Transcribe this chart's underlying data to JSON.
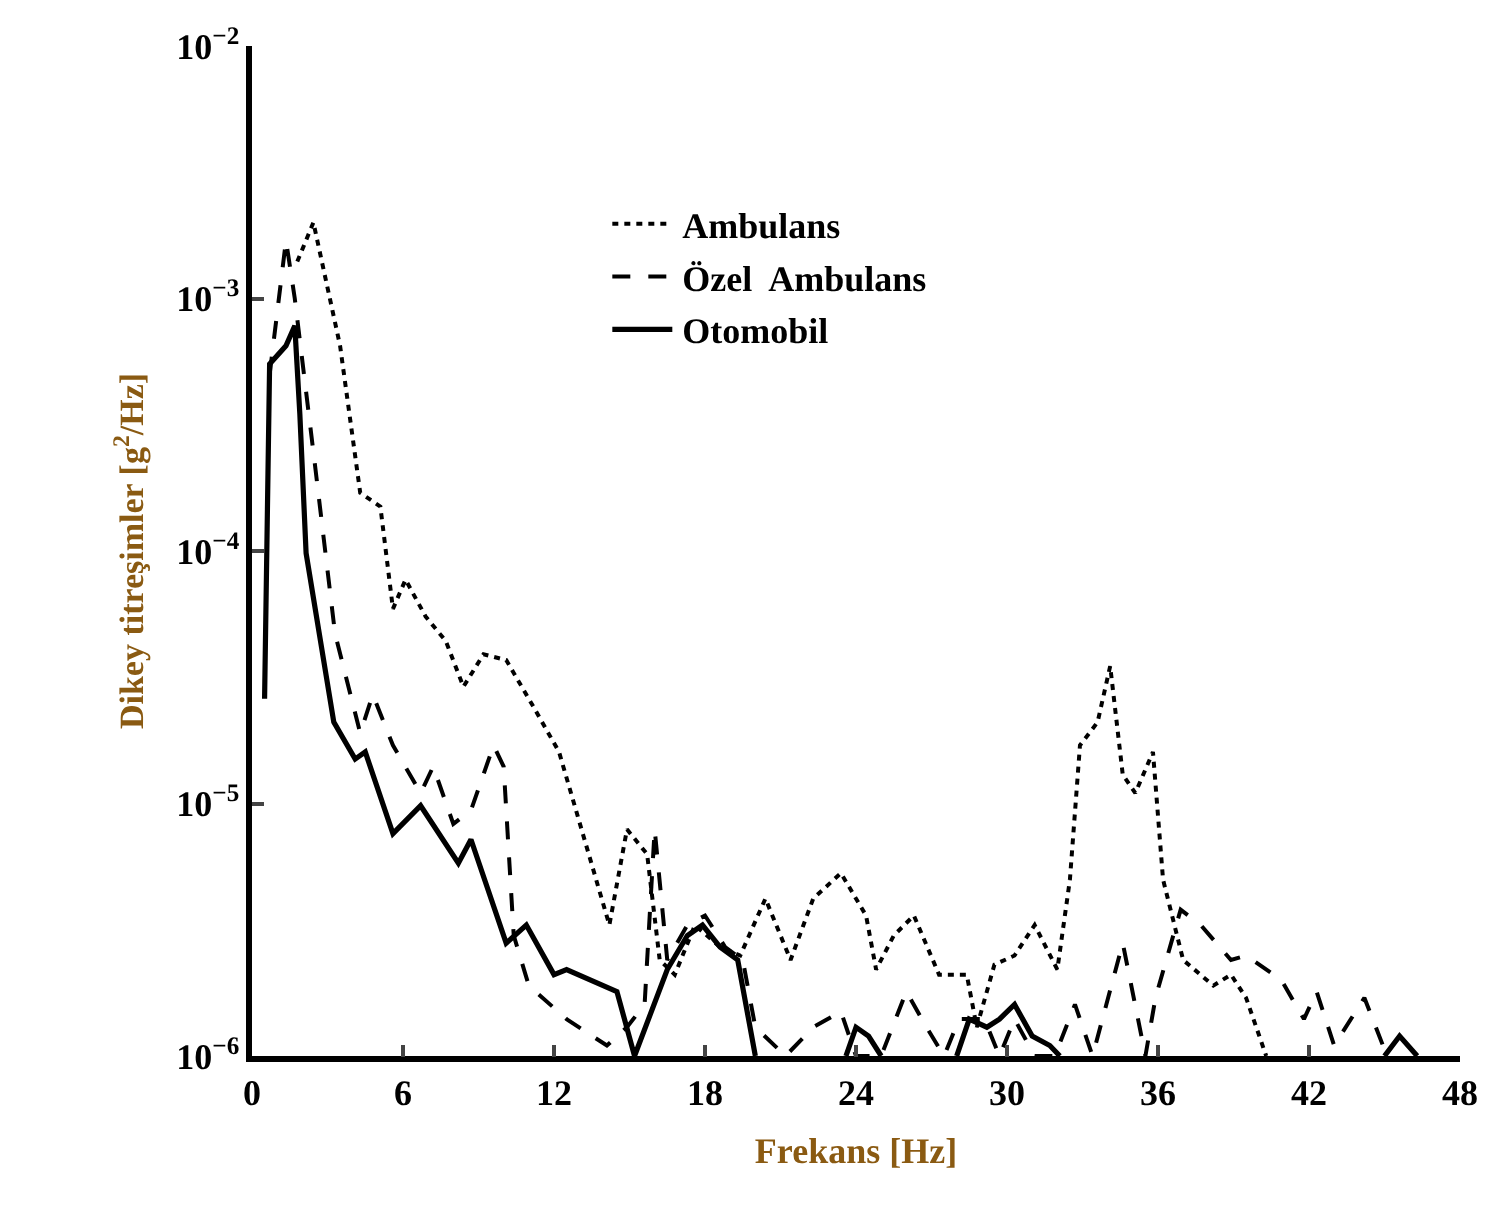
{
  "chart_data": {
    "type": "line",
    "xlabel": "Frekans [Hz]",
    "ylabel": "Dikey titreşimler [g$^{2}$/Hz]",
    "log": "y",
    "xlim": [
      0,
      48
    ],
    "xticks": [
      0,
      6,
      12,
      18,
      24,
      30,
      36,
      42,
      48
    ],
    "ylim": [
      1e-06,
      0.01
    ],
    "yticks": [
      {
        "value": 0.01,
        "label": "10$^{−2}$"
      },
      {
        "value": 0.001,
        "label": "10$^{−3}$"
      },
      {
        "value": 0.0001,
        "label": "10$^{−4}$"
      },
      {
        "value": 1e-05,
        "label": "10$^{−5}$"
      },
      {
        "value": 1e-06,
        "label": "10$^{−6}$"
      }
    ],
    "grid": false,
    "legend": "top",
    "marker": "none",
    "series": [
      {
        "name": "Ambulans",
        "color": "#000000",
        "line_style": "dotted",
        "x": [
          1.8,
          2.44,
          3.5,
          4.3,
          5.1,
          5.6,
          6.1,
          6.9,
          7.7,
          8.4,
          9.2,
          10.1,
          11.2,
          12.2,
          14.2,
          14.9,
          15.7,
          16.2,
          16.8,
          17.6,
          18.6,
          19.4,
          20.4,
          21.4,
          22.3,
          23.4,
          24.4,
          24.8,
          25.5,
          26.3,
          27.3,
          28.4,
          28.8,
          29.5,
          30.3,
          31.1,
          32.0,
          32.5,
          32.9,
          33.6,
          34.1,
          34.6,
          35.1,
          35.8,
          36.2,
          37.0,
          38.2,
          38.9,
          39.5,
          40.3
        ],
        "values": [
          0.0014,
          0.002,
          0.00065,
          0.00017,
          0.00015,
          5.9e-05,
          7.7e-05,
          5.5e-05,
          4.4e-05,
          2.9e-05,
          3.9e-05,
          3.7e-05,
          2.4e-05,
          1.6e-05,
          3.3e-06,
          7.9e-06,
          6.3e-06,
          2.4e-06,
          2.1e-06,
          3.3e-06,
          2.7e-06,
          2.5e-06,
          4.2e-06,
          2.4e-06,
          4.2e-06,
          5.3e-06,
          3.6e-06,
          2.2e-06,
          3e-06,
          3.6e-06,
          2.1e-06,
          2.1e-06,
          1.3e-06,
          2.3e-06,
          2.5e-06,
          3.3e-06,
          2.2e-06,
          5e-06,
          1.7e-05,
          2.1e-05,
          3.5e-05,
          1.3e-05,
          1.1e-05,
          1.6e-05,
          5e-06,
          2.4e-06,
          1.9e-06,
          2.1e-06,
          1.7e-06,
          1e-06
        ]
      },
      {
        "name": "Özel  Ambulans",
        "color": "#000000",
        "line_style": "dashed",
        "x": [
          0.7,
          1.35,
          1.7,
          2.5,
          3.3,
          4.3,
          4.8,
          5.6,
          6.7,
          7.2,
          8.0,
          8.7,
          9.6,
          10.0,
          10.4,
          11.0,
          12.5,
          14.1,
          14.9,
          15.6,
          16.0,
          16.5,
          17.3,
          18.0,
          18.8,
          19.5,
          20.0,
          21.2,
          22.3,
          23.4,
          24.0,
          25.0,
          26.0,
          26.8,
          27.5,
          28.1,
          29.1,
          29.7,
          30.3,
          31.1,
          31.9,
          32.7,
          33.4,
          34.6,
          35.5,
          35.9,
          36.9,
          37.7,
          38.9,
          39.5,
          40.9,
          41.8,
          42.3,
          43.0,
          44.2,
          45.1
        ],
        "values": [
          0.0005,
          0.0017,
          0.001,
          0.00022,
          4.7e-05,
          1.9e-05,
          2.7e-05,
          1.7e-05,
          1.1e-05,
          1.4e-05,
          8.3e-06,
          9.4e-06,
          1.7e-05,
          1.4e-05,
          3e-06,
          1.9e-06,
          1.4e-06,
          1.1e-06,
          1.3e-06,
          1.6e-06,
          7.9e-06,
          2.4e-06,
          3.3e-06,
          3.6e-06,
          2.7e-06,
          2.4e-06,
          1.3e-06,
          1e-06,
          1.3e-06,
          1.5e-06,
          1e-06,
          1e-06,
          1.8e-06,
          1.3e-06,
          1e-06,
          1.4e-06,
          1.4e-06,
          1e-06,
          1.4e-06,
          1e-06,
          1e-06,
          1.6e-06,
          1e-06,
          2.8e-06,
          1e-06,
          1.7e-06,
          3.8e-06,
          3.3e-06,
          2.4e-06,
          2.5e-06,
          2e-06,
          1.4e-06,
          1.8e-06,
          1.1e-06,
          1.7e-06,
          1e-06
        ]
      },
      {
        "name": "Otomobil",
        "color": "#000000",
        "line_style": "solid",
        "x": [
          0.5,
          0.7,
          1.35,
          1.7,
          1.9,
          2.15,
          3.25,
          4.1,
          4.5,
          5.6,
          6.7,
          8.2,
          8.7,
          10.1,
          10.9,
          12.0,
          12.5,
          14.5,
          15.2,
          16.5,
          17.3,
          17.9,
          18.6,
          19.3,
          20.0,
          22,
          23.6,
          24.0,
          24.5,
          25.0,
          27,
          28.0,
          28.5,
          29.2,
          29.7,
          30.3,
          31.0,
          31.7,
          32.1,
          40,
          45.0,
          45.6,
          46.3
        ],
        "values": [
          2.6e-05,
          0.00055,
          0.00065,
          0.00078,
          0.00035,
          9.8e-05,
          2.1e-05,
          1.5e-05,
          1.6e-05,
          7.6e-06,
          9.8e-06,
          5.8e-06,
          7.2e-06,
          2.8e-06,
          3.3e-06,
          2.1e-06,
          2.2e-06,
          1.8e-06,
          1e-06,
          2.2e-06,
          3e-06,
          3.3e-06,
          2.7e-06,
          2.4e-06,
          1e-06,
          null,
          1e-06,
          1.3e-06,
          1.2e-06,
          1e-06,
          null,
          1e-06,
          1.4e-06,
          1.3e-06,
          1.4e-06,
          1.6e-06,
          1.2e-06,
          1.1e-06,
          1e-06,
          null,
          1e-06,
          1.2e-06,
          1e-06
        ]
      }
    ]
  }
}
